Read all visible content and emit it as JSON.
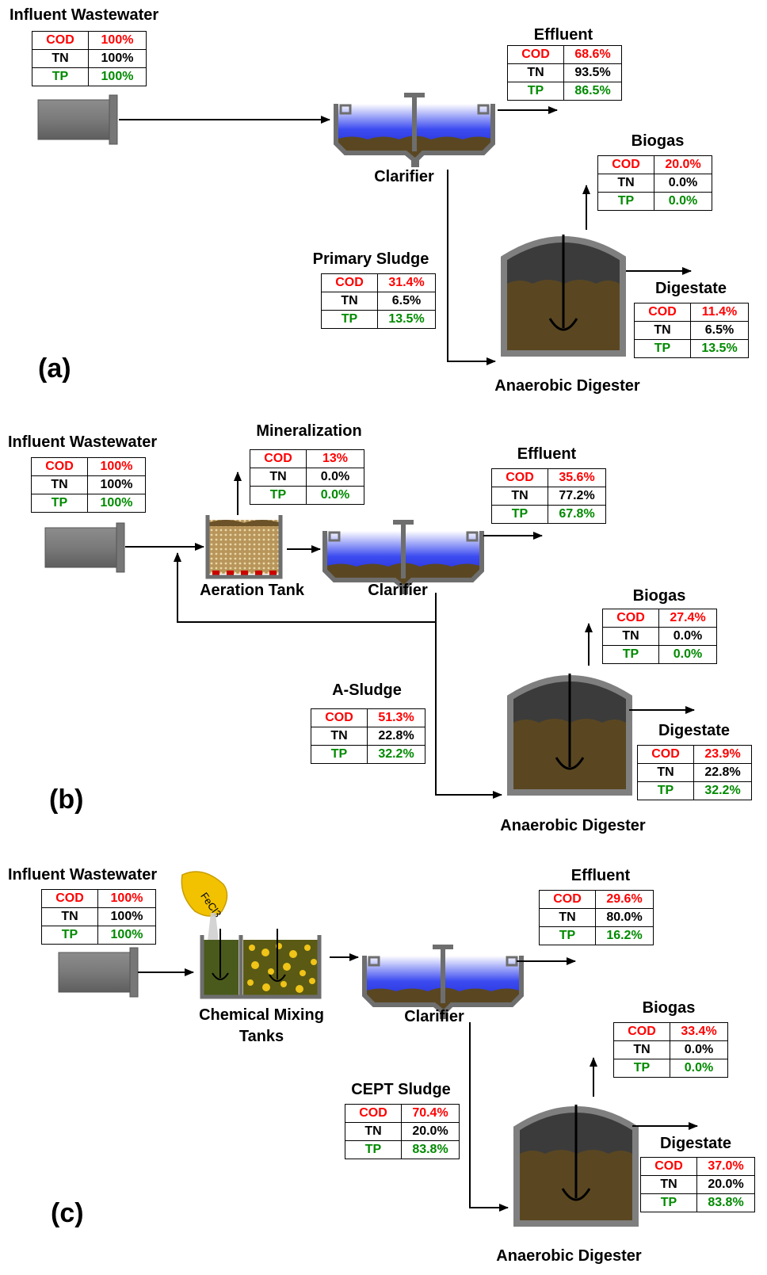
{
  "colors": {
    "cod": "#ff0000",
    "tn": "#000000",
    "tp": "#008a00",
    "water": "#1e2ee0",
    "sludge": "#5a4722",
    "steel": "#7f7f7f"
  },
  "icons": [
    "pump-icon",
    "clarifier-icon",
    "digester-icon",
    "aeration-tank-icon",
    "mixing-tanks-icon",
    "fecl3-bag-icon"
  ],
  "a": {
    "panel_label": "(a)",
    "influent": {
      "title": "Influent Wastewater",
      "cod": "100%",
      "tn": "100%",
      "tp": "100%"
    },
    "effluent": {
      "title": "Effluent",
      "cod": "68.6%",
      "tn": "93.5%",
      "tp": "86.5%"
    },
    "biogas": {
      "title": "Biogas",
      "cod": "20.0%",
      "tn": "0.0%",
      "tp": "0.0%"
    },
    "sludge": {
      "title": "Primary Sludge",
      "cod": "31.4%",
      "tn": "6.5%",
      "tp": "13.5%"
    },
    "digestate": {
      "title": "Digestate",
      "cod": "11.4%",
      "tn": "6.5%",
      "tp": "13.5%"
    },
    "clarifier_label": "Clarifier",
    "digester_label": "Anaerobic Digester"
  },
  "b": {
    "panel_label": "(b)",
    "influent": {
      "title": "Influent Wastewater",
      "cod": "100%",
      "tn": "100%",
      "tp": "100%"
    },
    "mineralization": {
      "title": "Mineralization",
      "cod": "13%",
      "tn": "0.0%",
      "tp": "0.0%"
    },
    "effluent": {
      "title": "Effluent",
      "cod": "35.6%",
      "tn": "77.2%",
      "tp": "67.8%"
    },
    "biogas": {
      "title": "Biogas",
      "cod": "27.4%",
      "tn": "0.0%",
      "tp": "0.0%"
    },
    "sludge": {
      "title": "A-Sludge",
      "cod": "51.3%",
      "tn": "22.8%",
      "tp": "32.2%"
    },
    "digestate": {
      "title": "Digestate",
      "cod": "23.9%",
      "tn": "22.8%",
      "tp": "32.2%"
    },
    "aeration_label": "Aeration Tank",
    "clarifier_label": "Clarifier",
    "digester_label": "Anaerobic Digester"
  },
  "c": {
    "panel_label": "(c)",
    "influent": {
      "title": "Influent Wastewater",
      "cod": "100%",
      "tn": "100%",
      "tp": "100%"
    },
    "effluent": {
      "title": "Effluent",
      "cod": "29.6%",
      "tn": "80.0%",
      "tp": "16.2%"
    },
    "biogas": {
      "title": "Biogas",
      "cod": "33.4%",
      "tn": "0.0%",
      "tp": "0.0%"
    },
    "sludge": {
      "title": "CEPT Sludge",
      "cod": "70.4%",
      "tn": "20.0%",
      "tp": "83.8%"
    },
    "digestate": {
      "title": "Digestate",
      "cod": "37.0%",
      "tn": "20.0%",
      "tp": "83.8%"
    },
    "mixing_label_1": "Chemical Mixing",
    "mixing_label_2": "Tanks",
    "clarifier_label": "Clarifier",
    "digester_label": "Anaerobic Digester",
    "bag_label": "FeCl3"
  },
  "row_labels": {
    "cod": "COD",
    "tn": "TN",
    "tp": "TP"
  }
}
